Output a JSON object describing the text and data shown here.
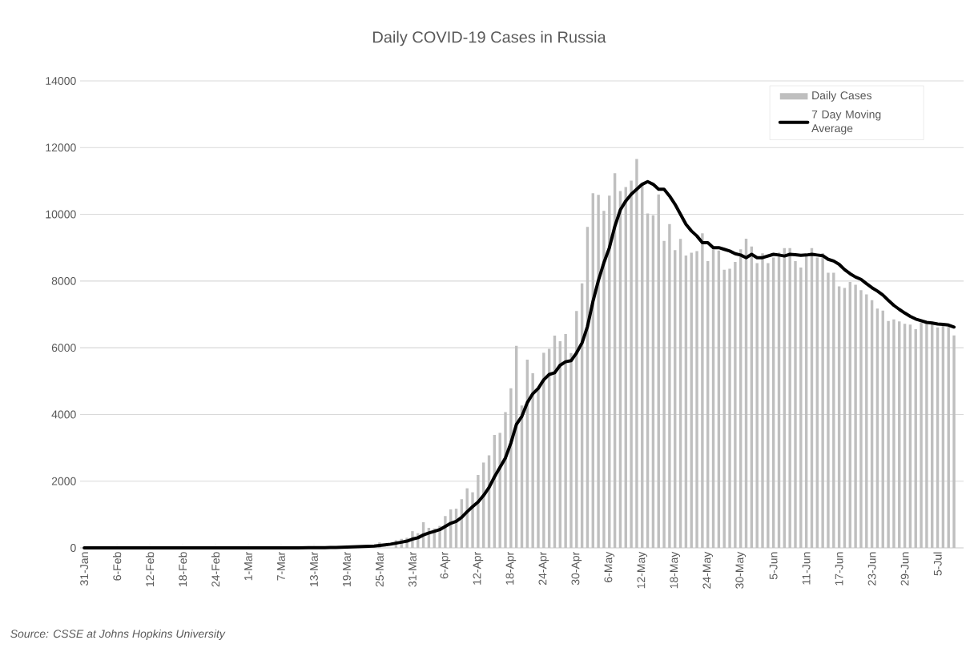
{
  "chart_data": {
    "type": "bar",
    "title": "Daily COVID-19 Cases in Russia",
    "categories": [
      "31-Jan",
      null,
      null,
      null,
      null,
      null,
      "6-Feb",
      null,
      null,
      null,
      null,
      null,
      "12-Feb",
      null,
      null,
      null,
      null,
      null,
      "18-Feb",
      null,
      null,
      null,
      null,
      null,
      "24-Feb",
      null,
      null,
      null,
      null,
      null,
      "1-Mar",
      null,
      null,
      null,
      null,
      null,
      "7-Mar",
      null,
      null,
      null,
      null,
      null,
      "13-Mar",
      null,
      null,
      null,
      null,
      null,
      "19-Mar",
      null,
      null,
      null,
      null,
      null,
      "25-Mar",
      null,
      null,
      null,
      null,
      null,
      "31-Mar",
      null,
      null,
      null,
      null,
      null,
      "6-Apr",
      null,
      null,
      null,
      null,
      null,
      "12-Apr",
      null,
      null,
      null,
      null,
      null,
      "18-Apr",
      null,
      null,
      null,
      null,
      null,
      "24-Apr",
      null,
      null,
      null,
      null,
      null,
      "30-Apr",
      null,
      null,
      null,
      null,
      null,
      "6-May",
      null,
      null,
      null,
      null,
      null,
      "12-May",
      null,
      null,
      null,
      null,
      null,
      "18-May",
      null,
      null,
      null,
      null,
      null,
      "24-May",
      null,
      null,
      null,
      null,
      null,
      "30-May",
      null,
      null,
      null,
      null,
      null,
      "5-Jun",
      null,
      null,
      null,
      null,
      null,
      "11-Jun",
      null,
      null,
      null,
      null,
      null,
      "17-Jun",
      null,
      null,
      null,
      null,
      null,
      "23-Jun",
      null,
      null,
      null,
      null,
      null,
      "29-Jun",
      null,
      null,
      null,
      null,
      null,
      "5-Jul",
      null,
      null,
      null
    ],
    "series": [
      {
        "name": "Daily Cases",
        "color": "#bfbfbf",
        "values": [
          null,
          null,
          null,
          null,
          null,
          null,
          null,
          null,
          null,
          null,
          null,
          null,
          null,
          null,
          null,
          null,
          null,
          null,
          null,
          null,
          null,
          null,
          null,
          null,
          null,
          null,
          null,
          null,
          null,
          null,
          null,
          null,
          null,
          null,
          null,
          null,
          null,
          null,
          null,
          null,
          null,
          null,
          null,
          null,
          null,
          null,
          null,
          null,
          null,
          null,
          null,
          null,
          null,
          null,
          163,
          null,
          null,
          228,
          270,
          302,
          501,
          440,
          771,
          601,
          582,
          658,
          954,
          1154,
          1175,
          1459,
          1786,
          1667,
          2186,
          2558,
          2774,
          3388,
          3448,
          4070,
          4785,
          6060,
          4268,
          5642,
          5236,
          4774,
          5849,
          5966,
          6361,
          6198,
          6411,
          5841,
          7099,
          7933,
          9623,
          10633,
          10581,
          10102,
          10559,
          11231,
          10699,
          10817,
          11012,
          11656,
          10899,
          10028,
          9974,
          10598,
          9200,
          9709,
          8926,
          9263,
          8764,
          8849,
          8894,
          9434,
          8599,
          8946,
          8915,
          8338,
          8371,
          8572,
          8952,
          9268,
          9035,
          8536,
          8831,
          8536,
          8705,
          8855,
          8984,
          8985,
          8595,
          8404,
          8779,
          8987,
          8706,
          8835,
          8246,
          8248,
          7843,
          7790,
          7972,
          7889,
          7728,
          7600,
          7425,
          7176,
          7113,
          6800,
          6852,
          6791,
          6719,
          6693,
          6556,
          6760,
          6718,
          6736,
          6611,
          6736,
          6632,
          6368
        ]
      },
      {
        "name": "7 Day Moving Average",
        "type": "line",
        "color": "#000000",
        "values": [
          0,
          0,
          0,
          0,
          0,
          0,
          0,
          0,
          0,
          0,
          0,
          0,
          0,
          0,
          0,
          0,
          0,
          0,
          0,
          0,
          0,
          0,
          0,
          0,
          0,
          0,
          0,
          0,
          0,
          0,
          0,
          0,
          0,
          0,
          0,
          0,
          1,
          1,
          1,
          2,
          3,
          4,
          6,
          8,
          7,
          12,
          14,
          18,
          25,
          32,
          38,
          43,
          50,
          51,
          70,
          91,
          111,
          140,
          170,
          203,
          263,
          303,
          387,
          445,
          494,
          548,
          644,
          737,
          795,
          915,
          1084,
          1236,
          1376,
          1572,
          1809,
          2131,
          2415,
          2697,
          3142,
          3698,
          3941,
          4355,
          4621,
          4783,
          5040,
          5198,
          5248,
          5475,
          5579,
          5611,
          5846,
          6144,
          6639,
          7390,
          8021,
          8548,
          8996,
          9640,
          10133,
          10400,
          10600,
          10750,
          10900,
          10980,
          10900,
          10750,
          10750,
          10550,
          10300,
          10000,
          9700,
          9500,
          9350,
          9150,
          9150,
          9000,
          9000,
          8950,
          8900,
          8820,
          8780,
          8700,
          8800,
          8700,
          8700,
          8750,
          8800,
          8780,
          8750,
          8800,
          8790,
          8770,
          8780,
          8800,
          8780,
          8760,
          8650,
          8600,
          8500,
          8340,
          8220,
          8120,
          8050,
          7920,
          7800,
          7700,
          7580,
          7420,
          7270,
          7150,
          7040,
          6940,
          6860,
          6810,
          6760,
          6740,
          6710,
          6700,
          6680,
          6620
        ]
      }
    ],
    "ylim": [
      0,
      14000
    ],
    "yticks": [
      0,
      2000,
      4000,
      6000,
      8000,
      10000,
      12000,
      14000
    ],
    "grid": "y",
    "legend": "top right",
    "annotations": [
      "Source: CSSE at Johns Hopkins University"
    ]
  }
}
